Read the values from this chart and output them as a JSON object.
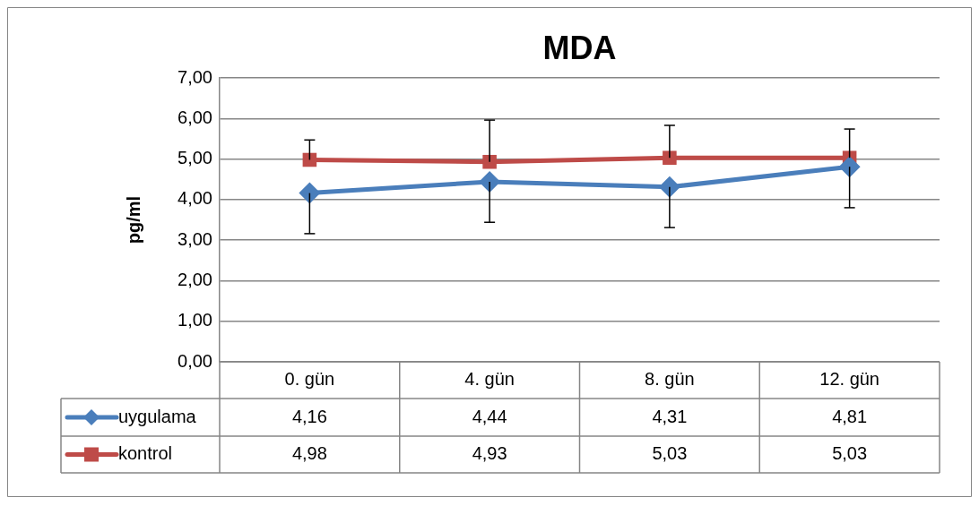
{
  "chart_data": {
    "type": "line",
    "title": "MDA",
    "ylabel": "pg/ml",
    "categories": [
      "0. gün",
      "4. gün",
      "8. gün",
      "12. gün"
    ],
    "series": [
      {
        "name": "uygulama",
        "color": "#4a7ebb",
        "marker": "diamond",
        "values": [
          4.16,
          4.44,
          4.31,
          4.81
        ],
        "value_labels": [
          "4,16",
          "4,44",
          "4,31",
          "4,81"
        ],
        "errors": [
          [
            3.16,
            4.16
          ],
          [
            3.44,
            4.44
          ],
          [
            3.31,
            4.31
          ],
          [
            3.8,
            4.81
          ]
        ]
      },
      {
        "name": "kontrol",
        "color": "#be4b48",
        "marker": "square",
        "values": [
          4.98,
          4.93,
          5.03,
          5.03
        ],
        "value_labels": [
          "4,98",
          "4,93",
          "5,03",
          "5,03"
        ],
        "errors": [
          [
            4.98,
            5.47
          ],
          [
            4.93,
            5.96
          ],
          [
            5.03,
            5.83
          ],
          [
            5.03,
            5.74
          ]
        ]
      }
    ],
    "ylim": [
      0,
      7
    ],
    "yticks": [
      {
        "value": 0,
        "label": "0,00"
      },
      {
        "value": 1,
        "label": "1,00"
      },
      {
        "value": 2,
        "label": "2,00"
      },
      {
        "value": 3,
        "label": "3,00"
      },
      {
        "value": 4,
        "label": "4,00"
      },
      {
        "value": 5,
        "label": "5,00"
      },
      {
        "value": 6,
        "label": "6,00"
      },
      {
        "value": 7,
        "label": "7,00"
      }
    ],
    "grid": "y",
    "legend": "bottom"
  }
}
